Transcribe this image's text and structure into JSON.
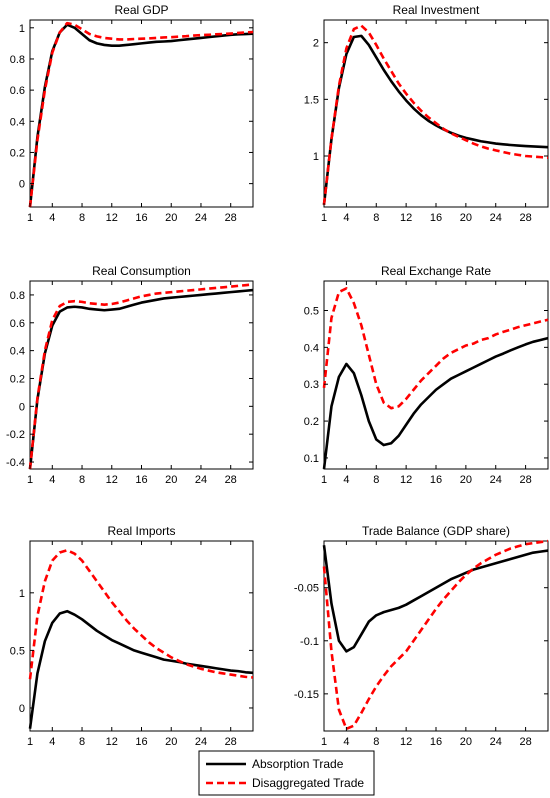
{
  "colors": {
    "absorption": "#000000",
    "disaggregated": "#ff0000",
    "axes": "#000000"
  },
  "legend": {
    "items": [
      "Absorption Trade",
      "Disaggregated Trade"
    ],
    "placement": "bottom-center"
  },
  "chart_data": [
    {
      "type": "line",
      "title": "Real GDP",
      "xlim": [
        1,
        31
      ],
      "ylim": [
        -0.15,
        1.05
      ],
      "xticks": [
        1,
        4,
        8,
        12,
        16,
        20,
        24,
        28
      ],
      "yticks": [
        0,
        0.2,
        0.4,
        0.6,
        0.8,
        1
      ],
      "ytick_labels": [
        "0",
        "0.2",
        "0.4",
        "0.6",
        "0.8",
        "1"
      ],
      "x": [
        1,
        2,
        3,
        4,
        5,
        6,
        7,
        8,
        9,
        10,
        11,
        12,
        13,
        14,
        15,
        16,
        17,
        18,
        19,
        20,
        21,
        22,
        23,
        24,
        25,
        26,
        27,
        28,
        29,
        30,
        31
      ],
      "series": [
        {
          "name": "Absorption Trade",
          "values": [
            -0.15,
            0.3,
            0.62,
            0.85,
            0.97,
            1.02,
            1.0,
            0.96,
            0.92,
            0.9,
            0.89,
            0.885,
            0.885,
            0.89,
            0.895,
            0.9,
            0.905,
            0.91,
            0.912,
            0.915,
            0.92,
            0.925,
            0.93,
            0.935,
            0.94,
            0.945,
            0.95,
            0.955,
            0.958,
            0.96,
            0.962
          ]
        },
        {
          "name": "Disaggregated Trade",
          "values": [
            -0.15,
            0.28,
            0.6,
            0.84,
            0.97,
            1.03,
            1.02,
            0.99,
            0.96,
            0.945,
            0.935,
            0.93,
            0.925,
            0.925,
            0.928,
            0.93,
            0.932,
            0.935,
            0.938,
            0.94,
            0.943,
            0.946,
            0.95,
            0.953,
            0.955,
            0.958,
            0.96,
            0.963,
            0.967,
            0.97,
            0.973
          ]
        }
      ]
    },
    {
      "type": "line",
      "title": "Real Investment",
      "xlim": [
        1,
        31
      ],
      "ylim": [
        0.55,
        2.2
      ],
      "xticks": [
        1,
        4,
        8,
        12,
        16,
        20,
        24,
        28
      ],
      "yticks": [
        1,
        1.5,
        2
      ],
      "ytick_labels": [
        "1",
        "1.5",
        "2"
      ],
      "x": [
        1,
        2,
        3,
        4,
        5,
        6,
        7,
        8,
        9,
        10,
        11,
        12,
        13,
        14,
        15,
        16,
        17,
        18,
        19,
        20,
        21,
        22,
        23,
        24,
        25,
        26,
        27,
        28,
        29,
        30,
        31
      ],
      "series": [
        {
          "name": "Absorption Trade",
          "values": [
            0.57,
            1.15,
            1.6,
            1.9,
            2.05,
            2.06,
            1.98,
            1.87,
            1.76,
            1.66,
            1.57,
            1.49,
            1.42,
            1.36,
            1.31,
            1.27,
            1.235,
            1.205,
            1.18,
            1.16,
            1.145,
            1.13,
            1.12,
            1.11,
            1.103,
            1.097,
            1.092,
            1.088,
            1.084,
            1.081,
            1.078
          ]
        },
        {
          "name": "Disaggregated Trade",
          "values": [
            0.57,
            1.15,
            1.62,
            1.95,
            2.12,
            2.15,
            2.09,
            1.98,
            1.86,
            1.75,
            1.64,
            1.55,
            1.47,
            1.4,
            1.34,
            1.29,
            1.24,
            1.2,
            1.17,
            1.14,
            1.11,
            1.085,
            1.065,
            1.05,
            1.035,
            1.02,
            1.01,
            1.0,
            0.995,
            0.99,
            0.985
          ]
        }
      ]
    },
    {
      "type": "line",
      "title": "Real Consumption",
      "xlim": [
        1,
        31
      ],
      "ylim": [
        -0.45,
        0.9
      ],
      "xticks": [
        1,
        4,
        8,
        12,
        16,
        20,
        24,
        28
      ],
      "yticks": [
        -0.4,
        -0.2,
        0,
        0.2,
        0.4,
        0.6,
        0.8
      ],
      "ytick_labels": [
        "-0.4",
        "-0.2",
        "0",
        "0.2",
        "0.4",
        "0.6",
        "0.8"
      ],
      "x": [
        1,
        2,
        3,
        4,
        5,
        6,
        7,
        8,
        9,
        10,
        11,
        12,
        13,
        14,
        15,
        16,
        17,
        18,
        19,
        20,
        21,
        22,
        23,
        24,
        25,
        26,
        27,
        28,
        29,
        30,
        31
      ],
      "series": [
        {
          "name": "Absorption Trade",
          "values": [
            -0.45,
            0.05,
            0.38,
            0.58,
            0.68,
            0.71,
            0.715,
            0.71,
            0.7,
            0.695,
            0.69,
            0.695,
            0.7,
            0.715,
            0.73,
            0.745,
            0.755,
            0.765,
            0.775,
            0.78,
            0.785,
            0.79,
            0.795,
            0.8,
            0.805,
            0.81,
            0.815,
            0.82,
            0.825,
            0.83,
            0.835
          ]
        },
        {
          "name": "Disaggregated Trade",
          "values": [
            -0.45,
            0.06,
            0.4,
            0.62,
            0.72,
            0.75,
            0.755,
            0.75,
            0.74,
            0.735,
            0.73,
            0.735,
            0.745,
            0.76,
            0.775,
            0.79,
            0.8,
            0.81,
            0.815,
            0.82,
            0.825,
            0.83,
            0.835,
            0.84,
            0.845,
            0.85,
            0.855,
            0.86,
            0.865,
            0.87,
            0.875
          ]
        }
      ]
    },
    {
      "type": "line",
      "title": "Real Exchange Rate",
      "xlim": [
        1,
        31
      ],
      "ylim": [
        0.07,
        0.58
      ],
      "xticks": [
        1,
        4,
        8,
        12,
        16,
        20,
        24,
        28
      ],
      "yticks": [
        0.1,
        0.2,
        0.3,
        0.4,
        0.5
      ],
      "ytick_labels": [
        "0.1",
        "0.2",
        "0.3",
        "0.4",
        "0.5"
      ],
      "x": [
        1,
        2,
        3,
        4,
        5,
        6,
        7,
        8,
        9,
        10,
        11,
        12,
        13,
        14,
        15,
        16,
        17,
        18,
        19,
        20,
        21,
        22,
        23,
        24,
        25,
        26,
        27,
        28,
        29,
        30,
        31
      ],
      "series": [
        {
          "name": "Absorption Trade",
          "values": [
            0.07,
            0.24,
            0.32,
            0.355,
            0.33,
            0.27,
            0.2,
            0.15,
            0.135,
            0.14,
            0.16,
            0.19,
            0.22,
            0.245,
            0.265,
            0.285,
            0.3,
            0.315,
            0.325,
            0.335,
            0.345,
            0.355,
            0.365,
            0.375,
            0.383,
            0.392,
            0.4,
            0.408,
            0.415,
            0.42,
            0.425
          ]
        },
        {
          "name": "Disaggregated Trade",
          "values": [
            0.29,
            0.48,
            0.55,
            0.56,
            0.52,
            0.46,
            0.38,
            0.3,
            0.25,
            0.235,
            0.24,
            0.26,
            0.285,
            0.31,
            0.33,
            0.35,
            0.37,
            0.385,
            0.395,
            0.405,
            0.41,
            0.42,
            0.425,
            0.435,
            0.442,
            0.448,
            0.455,
            0.46,
            0.465,
            0.47,
            0.475
          ]
        }
      ]
    },
    {
      "type": "line",
      "title": "Real Imports",
      "xlim": [
        1,
        31
      ],
      "ylim": [
        -0.2,
        1.45
      ],
      "xticks": [
        1,
        4,
        8,
        12,
        16,
        20,
        24,
        28
      ],
      "yticks": [
        0,
        0.5,
        1
      ],
      "ytick_labels": [
        "0",
        "0.5",
        "1"
      ],
      "x": [
        1,
        2,
        3,
        4,
        5,
        6,
        7,
        8,
        9,
        10,
        11,
        12,
        13,
        14,
        15,
        16,
        17,
        18,
        19,
        20,
        21,
        22,
        23,
        24,
        25,
        26,
        27,
        28,
        29,
        30,
        31
      ],
      "series": [
        {
          "name": "Absorption Trade",
          "values": [
            -0.18,
            0.3,
            0.58,
            0.74,
            0.82,
            0.84,
            0.81,
            0.77,
            0.72,
            0.67,
            0.63,
            0.59,
            0.56,
            0.53,
            0.5,
            0.48,
            0.46,
            0.44,
            0.42,
            0.41,
            0.4,
            0.385,
            0.375,
            0.365,
            0.355,
            0.345,
            0.335,
            0.325,
            0.32,
            0.31,
            0.305
          ]
        },
        {
          "name": "Disaggregated Trade",
          "values": [
            0.25,
            0.8,
            1.1,
            1.28,
            1.35,
            1.37,
            1.34,
            1.28,
            1.19,
            1.1,
            1.01,
            0.92,
            0.84,
            0.76,
            0.69,
            0.63,
            0.57,
            0.52,
            0.48,
            0.44,
            0.41,
            0.38,
            0.36,
            0.34,
            0.325,
            0.31,
            0.3,
            0.29,
            0.28,
            0.27,
            0.265
          ]
        }
      ]
    },
    {
      "type": "line",
      "title": "Trade Balance (GDP share)",
      "xlim": [
        1,
        31
      ],
      "ylim": [
        -0.185,
        -0.006
      ],
      "xticks": [
        1,
        4,
        8,
        12,
        16,
        20,
        24,
        28
      ],
      "yticks": [
        -0.15,
        -0.1,
        -0.05
      ],
      "ytick_labels": [
        "-0.15",
        "-0.1",
        "-0.05"
      ],
      "x": [
        1,
        2,
        3,
        4,
        5,
        6,
        7,
        8,
        9,
        10,
        11,
        12,
        13,
        14,
        15,
        16,
        17,
        18,
        19,
        20,
        21,
        22,
        23,
        24,
        25,
        26,
        27,
        28,
        29,
        30,
        31
      ],
      "series": [
        {
          "name": "Absorption Trade",
          "values": [
            -0.01,
            -0.065,
            -0.1,
            -0.11,
            -0.106,
            -0.094,
            -0.082,
            -0.076,
            -0.073,
            -0.071,
            -0.069,
            -0.066,
            -0.062,
            -0.058,
            -0.054,
            -0.05,
            -0.046,
            -0.042,
            -0.039,
            -0.036,
            -0.033,
            -0.031,
            -0.029,
            -0.027,
            -0.025,
            -0.023,
            -0.021,
            -0.019,
            -0.017,
            -0.016,
            -0.015
          ]
        },
        {
          "name": "Disaggregated Trade",
          "values": [
            -0.03,
            -0.11,
            -0.165,
            -0.183,
            -0.18,
            -0.168,
            -0.155,
            -0.143,
            -0.133,
            -0.124,
            -0.117,
            -0.11,
            -0.1,
            -0.09,
            -0.08,
            -0.07,
            -0.061,
            -0.053,
            -0.045,
            -0.038,
            -0.032,
            -0.027,
            -0.023,
            -0.019,
            -0.016,
            -0.013,
            -0.011,
            -0.009,
            -0.008,
            -0.007,
            -0.006
          ]
        }
      ]
    }
  ]
}
